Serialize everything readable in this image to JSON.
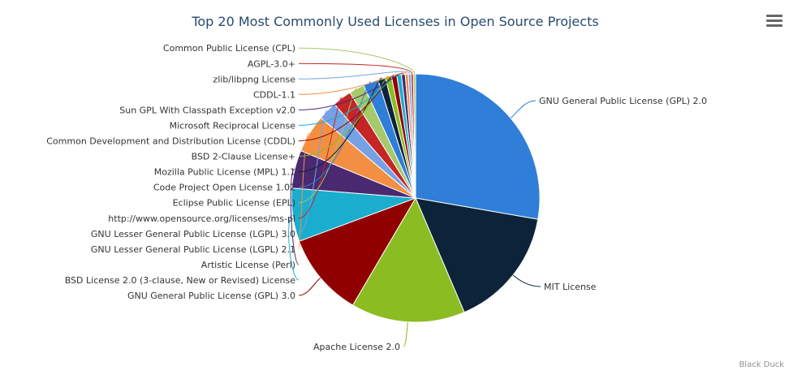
{
  "chart_data": {
    "type": "pie",
    "title": "Top 20 Most Commonly Used Licenses in Open Source Projects",
    "credit": "Black Duck",
    "slices": [
      {
        "label": "GNU General Public License (GPL) 2.0",
        "value": 28,
        "color": "#2f7ed8"
      },
      {
        "label": "MIT License",
        "value": 16,
        "color": "#0d233a"
      },
      {
        "label": "Apache License 2.0",
        "value": 15,
        "color": "#8bbc21"
      },
      {
        "label": "GNU General Public License (GPL) 3.0",
        "value": 11,
        "color": "#910000"
      },
      {
        "label": "BSD License 2.0 (3-clause, New or Revised) License",
        "value": 7,
        "color": "#1aadce"
      },
      {
        "label": "Artistic License (Perl)",
        "value": 5,
        "color": "#492970"
      },
      {
        "label": "GNU Lesser General Public License (LGPL) 2.1",
        "value": 5,
        "color": "#f28f43"
      },
      {
        "label": "GNU Lesser General Public License (LGPL) 3.0",
        "value": 2.5,
        "color": "#77a1e5"
      },
      {
        "label": "http://www.opensource.org/licenses/ms-pl",
        "value": 2.5,
        "color": "#c42525"
      },
      {
        "label": "Eclipse Public License (EPL)",
        "value": 2,
        "color": "#a6c96a"
      },
      {
        "label": "Code Project Open License 1.02",
        "value": 2,
        "color": "#2f7ed8"
      },
      {
        "label": "Mozilla Public License (MPL) 1.1",
        "value": 1,
        "color": "#0d233a"
      },
      {
        "label": "BSD 2-Clause License+",
        "value": 0.8,
        "color": "#8bbc21"
      },
      {
        "label": "Common Development and Distribution License (CDDL)",
        "value": 0.7,
        "color": "#910000"
      },
      {
        "label": "Microsoft Reciprocal License",
        "value": 0.6,
        "color": "#1aadce"
      },
      {
        "label": "Sun GPL With Classpath Exception v2.0",
        "value": 0.5,
        "color": "#492970"
      },
      {
        "label": "CDDL-1.1",
        "value": 0.4,
        "color": "#f28f43"
      },
      {
        "label": "zlib/libpng License",
        "value": 0.35,
        "color": "#77a1e5"
      },
      {
        "label": "AGPL-3.0+",
        "value": 0.3,
        "color": "#c42525"
      },
      {
        "label": "Common Public License (CPL)",
        "value": 0.3,
        "color": "#a6c96a"
      }
    ]
  },
  "toolbar": {
    "menu_icon": "hamburger-menu-icon"
  }
}
